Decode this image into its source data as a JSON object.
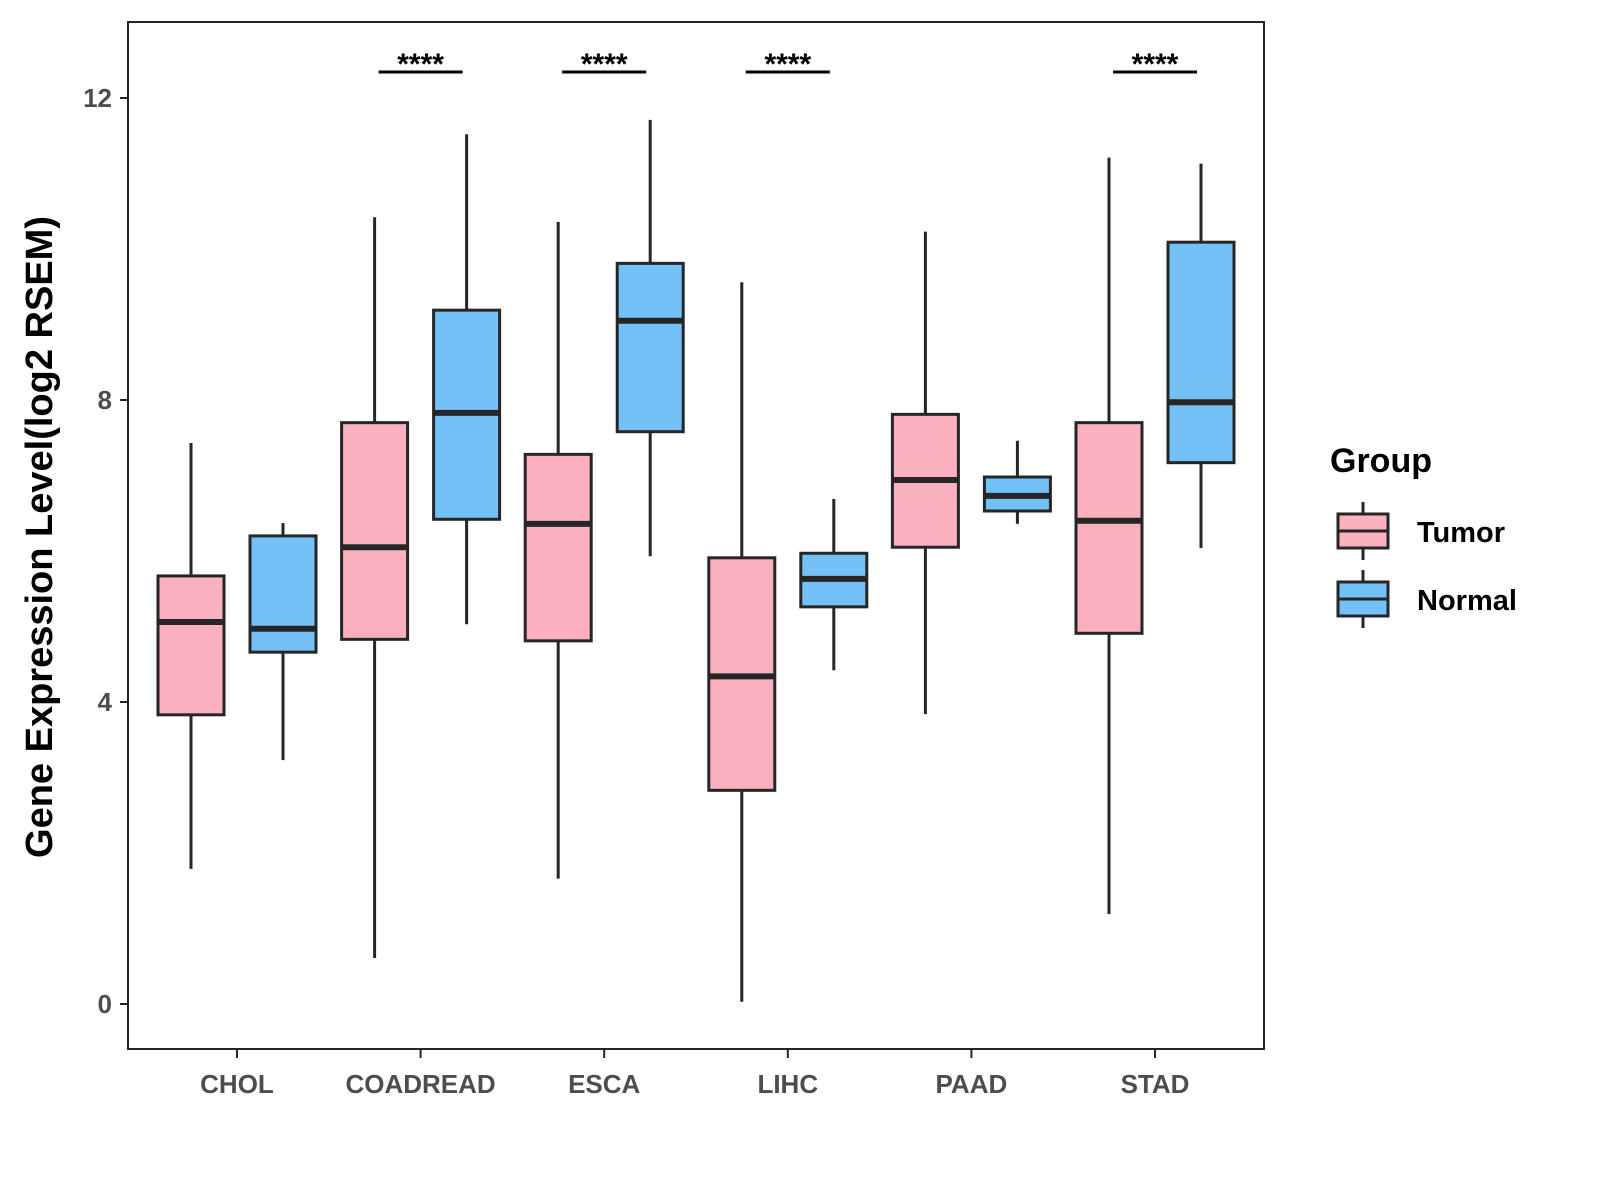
{
  "chart_data": {
    "type": "boxplot",
    "title": "",
    "xlabel": "",
    "ylabel": "Gene Expression Level(log2 RSEM)",
    "ylim": [
      -0.6,
      13
    ],
    "yticks": [
      0,
      4,
      8,
      12
    ],
    "categories": [
      "CHOL",
      "COADREAD",
      "ESCA",
      "LIHC",
      "PAAD",
      "STAD"
    ],
    "legend": {
      "title": "Group",
      "placement": "right",
      "entries": [
        "Tumor",
        "Normal"
      ]
    },
    "colors": {
      "Tumor": "#FBB0C0",
      "Normal": "#74C1F8",
      "stroke": "#262626"
    },
    "series": [
      {
        "name": "Tumor",
        "boxes": [
          {
            "min": 1.79,
            "q1": 3.83,
            "median": 5.06,
            "q3": 5.67,
            "max": 7.43
          },
          {
            "min": 0.61,
            "q1": 4.83,
            "median": 6.05,
            "q3": 7.7,
            "max": 10.42
          },
          {
            "min": 1.66,
            "q1": 4.81,
            "median": 6.36,
            "q3": 7.28,
            "max": 10.36
          },
          {
            "min": 0.03,
            "q1": 2.83,
            "median": 4.34,
            "q3": 5.91,
            "max": 9.56
          },
          {
            "min": 3.84,
            "q1": 6.05,
            "median": 6.94,
            "q3": 7.81,
            "max": 10.23
          },
          {
            "min": 1.19,
            "q1": 4.91,
            "median": 6.4,
            "q3": 7.7,
            "max": 11.21
          }
        ]
      },
      {
        "name": "Normal",
        "boxes": [
          {
            "min": 3.23,
            "q1": 4.66,
            "median": 4.97,
            "q3": 6.2,
            "max": 6.37
          },
          {
            "min": 5.03,
            "q1": 6.42,
            "median": 7.83,
            "q3": 9.19,
            "max": 11.52
          },
          {
            "min": 5.93,
            "q1": 7.58,
            "median": 9.05,
            "q3": 9.81,
            "max": 11.71
          },
          {
            "min": 4.42,
            "q1": 5.26,
            "median": 5.63,
            "q3": 5.97,
            "max": 6.69
          },
          {
            "min": 6.36,
            "q1": 6.53,
            "median": 6.73,
            "q3": 6.98,
            "max": 7.46
          },
          {
            "min": 6.04,
            "q1": 7.17,
            "median": 7.97,
            "q3": 10.09,
            "max": 11.13
          }
        ]
      }
    ],
    "significance": [
      {
        "category": "COADREAD",
        "label": "****"
      },
      {
        "category": "ESCA",
        "label": "****"
      },
      {
        "category": "LIHC",
        "label": "****"
      },
      {
        "category": "STAD",
        "label": "****"
      }
    ]
  }
}
